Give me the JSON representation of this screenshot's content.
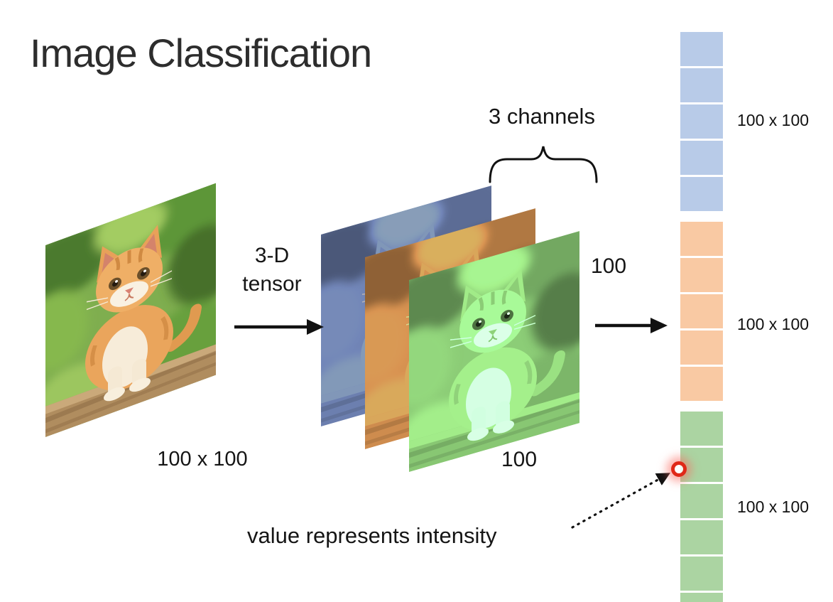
{
  "title": "Image Classification",
  "tensor": {
    "label_line1": "3-D",
    "label_line2": "tensor",
    "channels_label": "3 channels",
    "height_label": "100",
    "width_label": "100"
  },
  "source_image": {
    "subject": "orange kitten photo",
    "size_label": "100 x 100"
  },
  "annotation": {
    "text": "value represents intensity"
  },
  "vector": {
    "groups": [
      {
        "id": "blue",
        "channel": "blue",
        "color": "#b8cbe8",
        "cells": 5,
        "label": "100 x 100"
      },
      {
        "id": "orange",
        "channel": "red",
        "color": "#f9c9a3",
        "cells": 5,
        "label": "100 x 100"
      },
      {
        "id": "green",
        "channel": "green",
        "color": "#abd4a2",
        "cells": 6,
        "label": "100 x 100"
      }
    ]
  },
  "colors": {
    "marker_red": "#e02818",
    "arrow_black": "#111111"
  }
}
